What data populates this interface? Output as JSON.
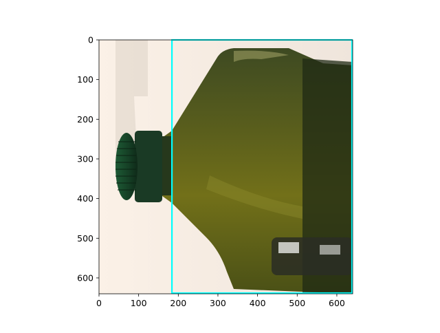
{
  "image": {
    "subject": "green glass bottle with screw cap",
    "colors": {
      "background": "#f7ece2",
      "bottle_glass": "#6f6d1f",
      "bottle_dark": "#1d2712",
      "cap": "#1f4a30",
      "overlay_box": "#00ffff"
    }
  },
  "axes": {
    "x_ticks": [
      "0",
      "100",
      "200",
      "300",
      "400",
      "500",
      "600"
    ],
    "y_ticks": [
      "0",
      "100",
      "200",
      "300",
      "400",
      "500",
      "600"
    ],
    "x_range": [
      0,
      640
    ],
    "y_range": [
      0,
      640
    ]
  },
  "overlay": {
    "type": "box",
    "color": "#00ffff",
    "x_range": [
      184,
      640
    ],
    "y_range": [
      0,
      640
    ]
  }
}
